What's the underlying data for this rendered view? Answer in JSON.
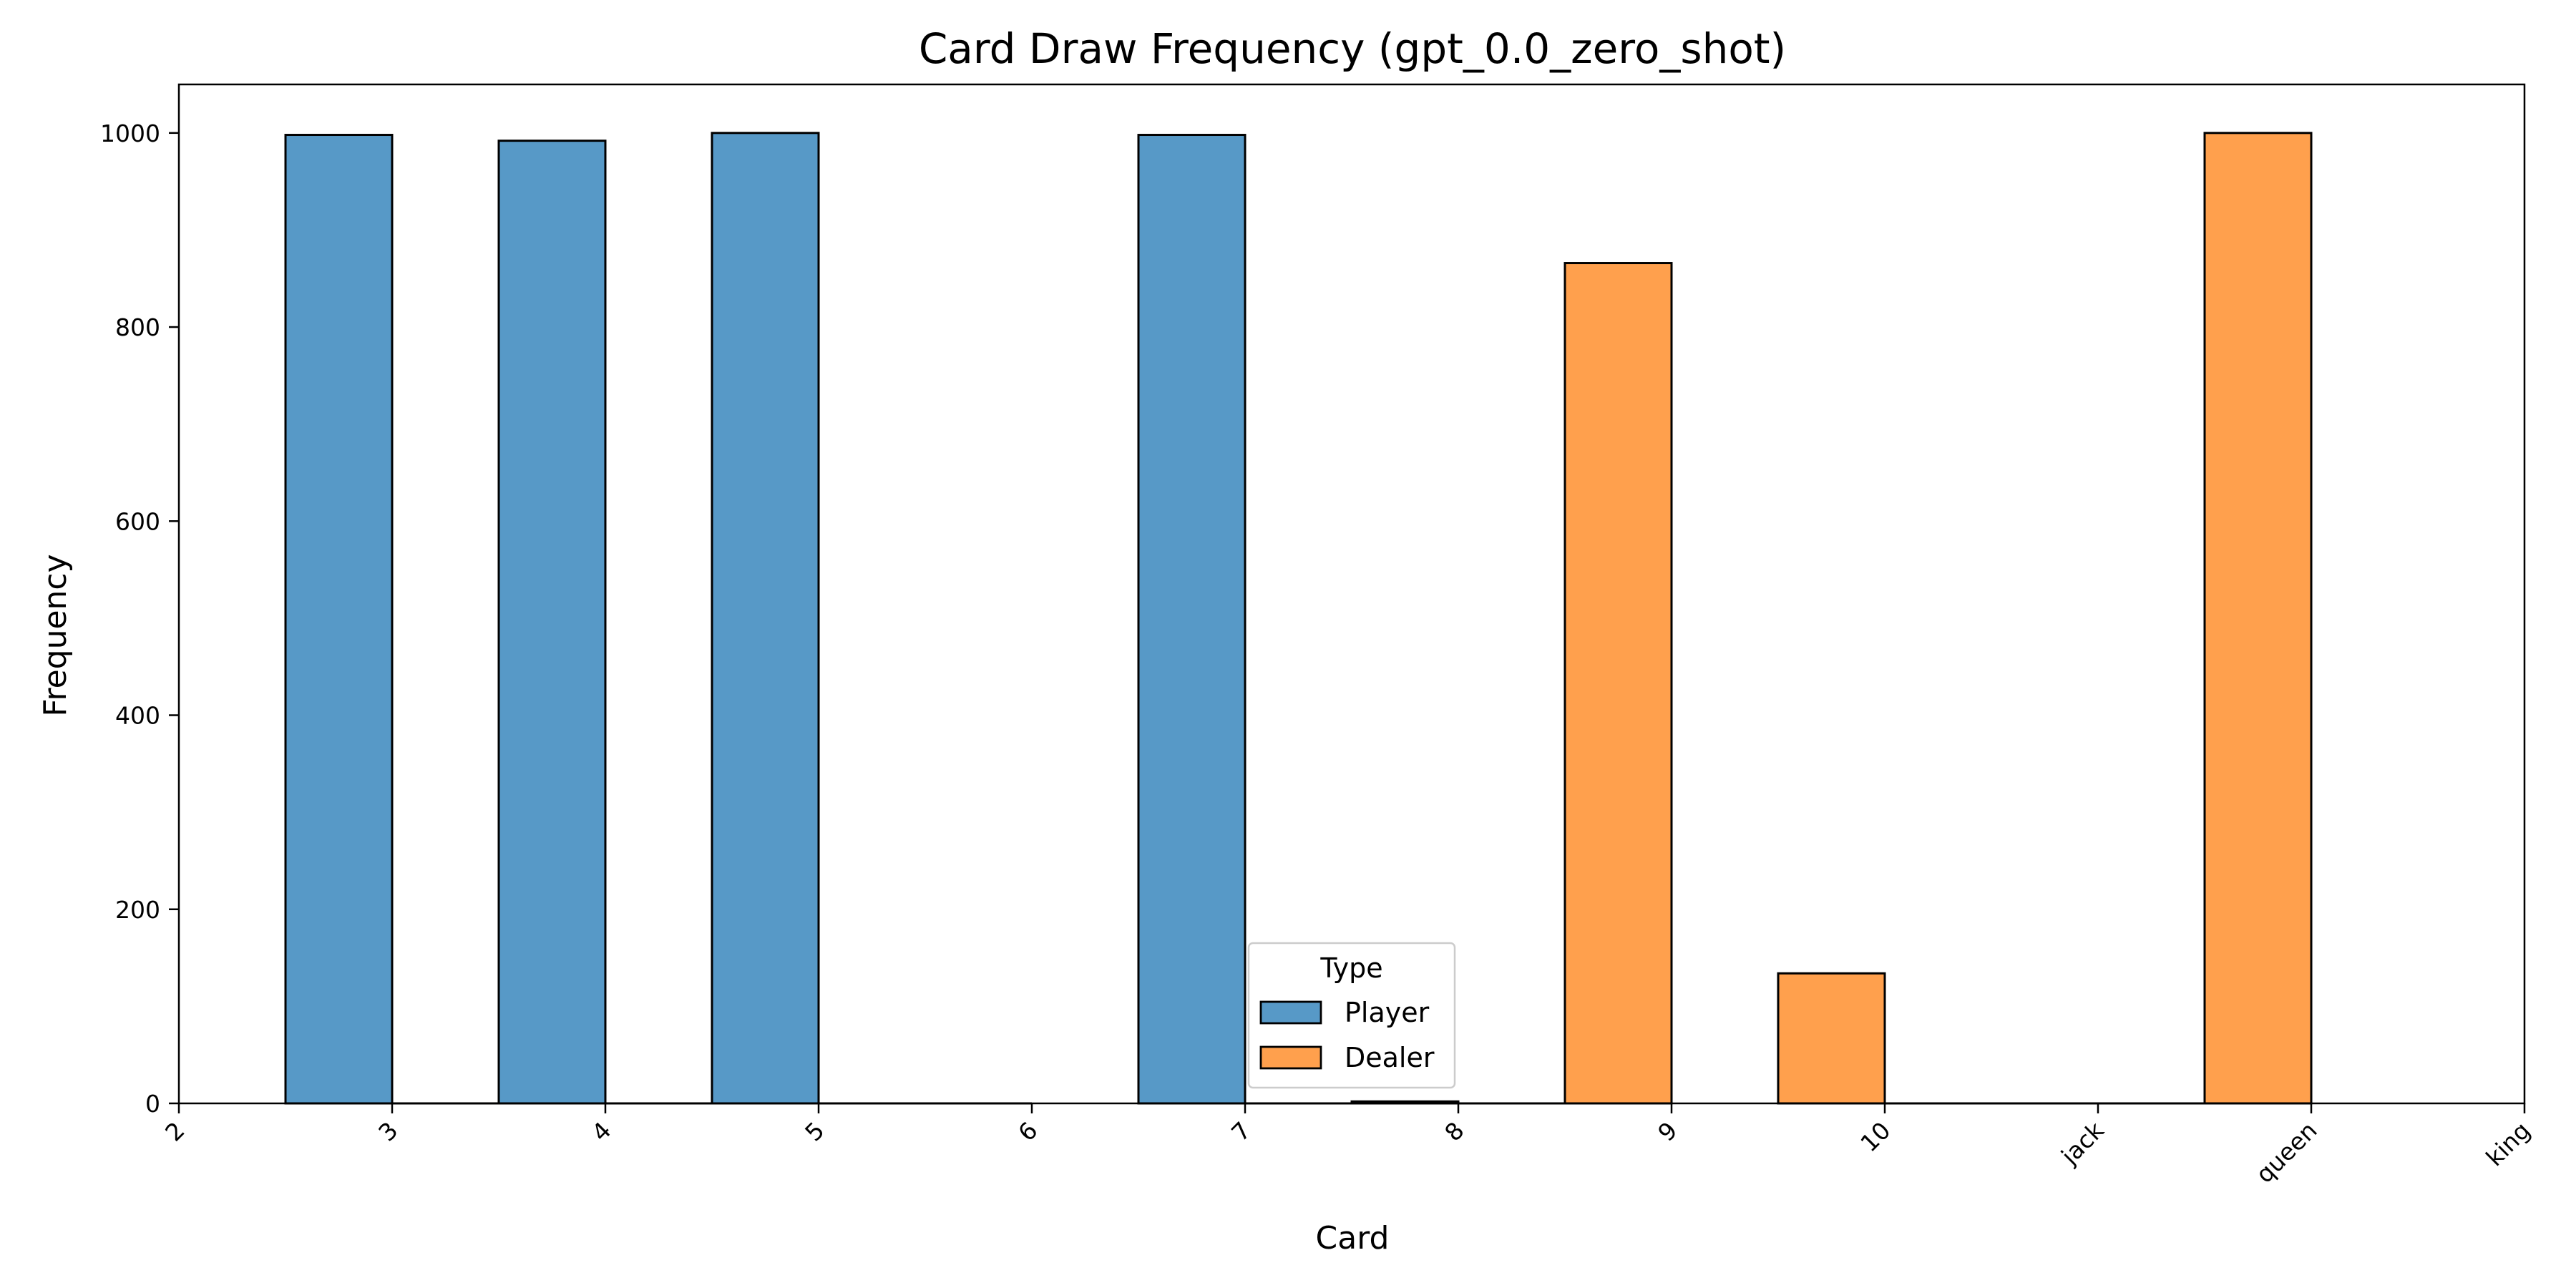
{
  "chart_data": {
    "type": "bar",
    "title": "Card Draw Frequency (gpt_0.0_zero_shot)",
    "xlabel": "Card",
    "ylabel": "Frequency",
    "ylim": [
      0,
      1050
    ],
    "yticks": [
      0,
      200,
      400,
      600,
      800,
      1000
    ],
    "xticks": [
      "2",
      "3",
      "4",
      "5",
      "6",
      "7",
      "8",
      "9",
      "10",
      "jack",
      "queen",
      "king"
    ],
    "grid": false,
    "legend": {
      "title": "Type",
      "placement": "lower-center"
    },
    "bins": [
      {
        "from": "2",
        "to": "3",
        "series": "Player"
      },
      {
        "from": "3",
        "to": "4",
        "series": "Dealer"
      },
      {
        "from": "4",
        "to": "5",
        "series": "Player"
      },
      {
        "from": "5",
        "to": "6",
        "series": "Dealer"
      }
    ],
    "series": [
      {
        "name": "Player",
        "color": "#5799c7",
        "bars": [
          {
            "start": "2",
            "value": 998
          },
          {
            "start": "3",
            "value": 992
          },
          {
            "start": "4",
            "value": 1000
          },
          {
            "start": "6",
            "value": 998
          },
          {
            "start": "7",
            "value": 2
          },
          {
            "start": "8",
            "value": 7
          }
        ]
      },
      {
        "name": "Dealer",
        "color": "#ffa04d",
        "bars": [
          {
            "start": "8",
            "value": 866
          },
          {
            "start": "9",
            "value": 134
          },
          {
            "start": "jack",
            "value": 1000
          }
        ]
      }
    ],
    "zero_line_spans": [
      {
        "from": "3",
        "to": "4"
      },
      {
        "from": "4",
        "to": "5"
      },
      {
        "from": "5",
        "to": "6"
      },
      {
        "from": "7",
        "to": "8"
      },
      {
        "from": "8",
        "to": "9"
      },
      {
        "from": "10",
        "to": "queen"
      }
    ]
  }
}
